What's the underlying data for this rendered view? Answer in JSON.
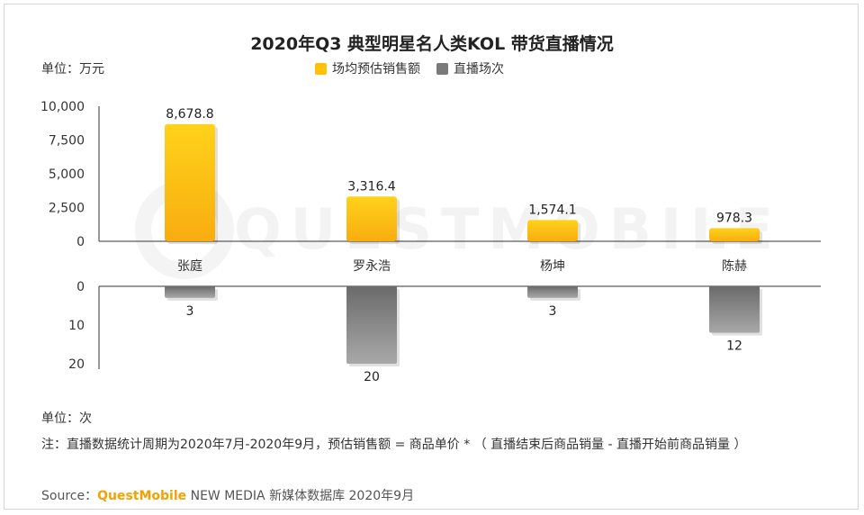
{
  "title": "2020年Q3 典型明星名人类KOL 带货直播情况",
  "unit_top": "单位：万元",
  "unit_bottom": "单位：次",
  "note": "注：直播数据统计周期为2020年7月-2020年9月，预估销售额 = 商品单价 * （ 直播结束后商品销量 - 直播开始前商品销量 ）",
  "source": {
    "prefix": "Source：",
    "brand": "QuestMobile",
    "rest": " NEW MEDIA 新媒体数据库 2020年9月"
  },
  "watermark": "QUESTMOBILE",
  "legend": {
    "sales": "场均预估销售额",
    "sessions": "直播场次"
  },
  "colors": {
    "sales_top": "#ffd21a",
    "sales_bottom": "#f8ad10",
    "sessions_top": "#6b6b6b",
    "sessions_bottom": "#a8a8a8",
    "axis": "#333333"
  },
  "chart_data": [
    {
      "type": "bar",
      "title": "场均预估销售额",
      "ylabel": "万元",
      "categories": [
        "张庭",
        "罗永浩",
        "杨坤",
        "陈赫"
      ],
      "values": [
        8678.8,
        3316.4,
        1574.1,
        978.3
      ],
      "value_labels": [
        "8,678.8",
        "3,316.4",
        "1,574.1",
        "978.3"
      ],
      "ylim": [
        0,
        10000
      ],
      "yticks": [
        0,
        2500,
        5000,
        7500,
        10000
      ],
      "ytick_labels": [
        "0",
        "2,500",
        "5,000",
        "7,500",
        "10,000"
      ]
    },
    {
      "type": "bar",
      "title": "直播场次",
      "ylabel": "次",
      "orientation": "downward",
      "categories": [
        "张庭",
        "罗永浩",
        "杨坤",
        "陈赫"
      ],
      "values": [
        3,
        20,
        3,
        12
      ],
      "value_labels": [
        "3",
        "20",
        "3",
        "12"
      ],
      "ylim": [
        0,
        20
      ],
      "yticks": [
        0,
        10,
        20
      ],
      "ytick_labels": [
        "0",
        "10",
        "20"
      ]
    }
  ]
}
